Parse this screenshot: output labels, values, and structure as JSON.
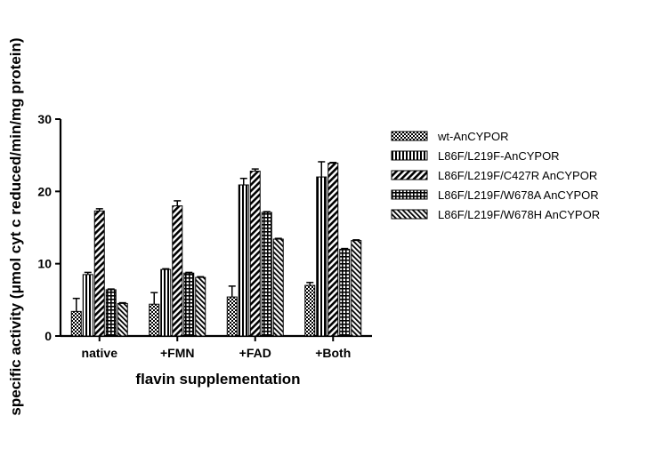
{
  "chart_data": {
    "type": "bar",
    "xlabel": "flavin supplementation",
    "ylabel": "specific activity (μmol cyt c reduced/min/mg protein)",
    "ylim": [
      0,
      30
    ],
    "yticks": [
      0,
      10,
      20,
      30
    ],
    "categories": [
      "native",
      "+FMN",
      "+FAD",
      "+Both"
    ],
    "legend_position": "right",
    "grid": false,
    "series": [
      {
        "name": "wt-AnCYPOR",
        "pattern": "checker",
        "values": [
          3.4,
          4.4,
          5.4,
          7.0
        ],
        "errors": [
          1.8,
          1.6,
          1.5,
          0.4
        ]
      },
      {
        "name": "L86F/L219F-AnCYPOR",
        "pattern": "vertical-stripes",
        "values": [
          8.5,
          9.2,
          20.9,
          22.0
        ],
        "errors": [
          0.3,
          0.1,
          0.9,
          2.1
        ]
      },
      {
        "name": "L86F/L219F/C427R AnCYPOR",
        "pattern": "diagonal-stripes",
        "values": [
          17.3,
          18.0,
          22.8,
          23.9
        ],
        "errors": [
          0.3,
          0.7,
          0.3,
          0.1
        ]
      },
      {
        "name": "L86F/L219F/W678A AnCYPOR",
        "pattern": "grid",
        "values": [
          6.4,
          8.7,
          17.1,
          12.0
        ],
        "errors": [
          0.1,
          0.1,
          0.1,
          0.1
        ]
      },
      {
        "name": "L86F/L219F/W678H AnCYPOR",
        "pattern": "fine-diagonal",
        "values": [
          4.5,
          8.1,
          13.4,
          13.2
        ],
        "errors": [
          0.1,
          0.1,
          0.1,
          0.1
        ]
      }
    ]
  }
}
